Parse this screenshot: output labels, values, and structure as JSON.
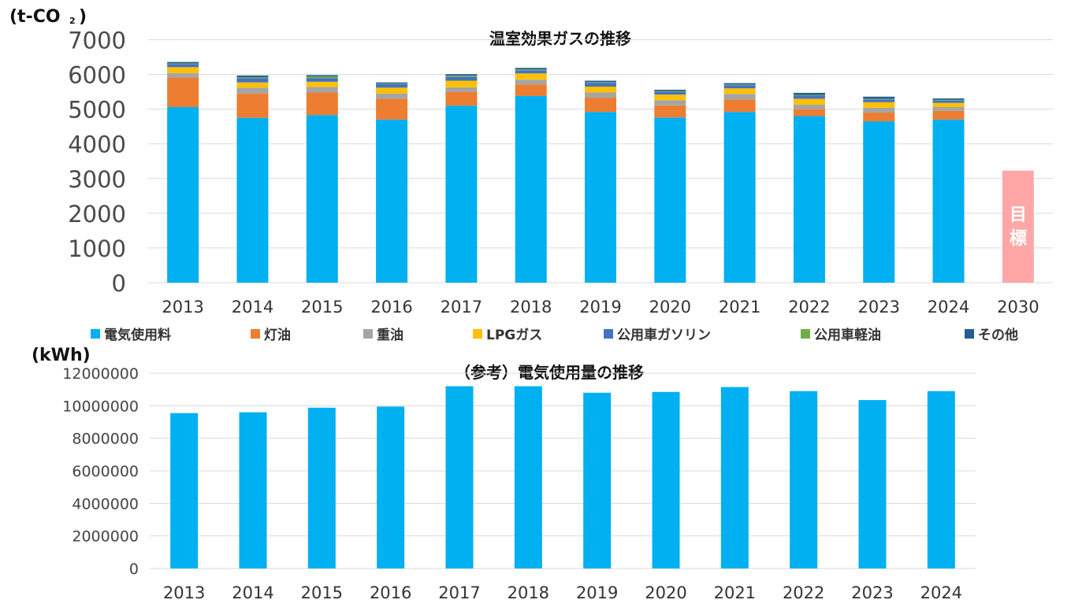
{
  "chart_data": [
    {
      "type": "bar",
      "stacked": true,
      "title": "温室効果ガスの推移",
      "unit_label": "(t-CO",
      "unit_subscript": "2",
      "unit_close": ")",
      "ylim": [
        0,
        7000
      ],
      "y_ticks": [
        0,
        1000,
        2000,
        3000,
        4000,
        5000,
        6000,
        7000
      ],
      "grid": true,
      "legend_position": "bottom",
      "categories": [
        "2013",
        "2014",
        "2015",
        "2016",
        "2017",
        "2018",
        "2019",
        "2020",
        "2021",
        "2022",
        "2023",
        "2024",
        "2030"
      ],
      "series": [
        {
          "name": "電気使用料",
          "color": "#00B0F0",
          "values": [
            5060,
            4750,
            4830,
            4700,
            5100,
            5380,
            4920,
            4760,
            4920,
            4800,
            4650,
            4700,
            0
          ]
        },
        {
          "name": "灯油",
          "color": "#ED7D31",
          "values": [
            850,
            700,
            650,
            600,
            400,
            330,
            410,
            350,
            360,
            200,
            250,
            250,
            0
          ]
        },
        {
          "name": "重油",
          "color": "#A5A5A5",
          "values": [
            130,
            170,
            160,
            150,
            130,
            140,
            150,
            150,
            160,
            130,
            140,
            110,
            0
          ]
        },
        {
          "name": "LPGガス",
          "color": "#FFC000",
          "values": [
            170,
            150,
            150,
            170,
            190,
            180,
            170,
            160,
            160,
            170,
            160,
            120,
            0
          ]
        },
        {
          "name": "公用車ガソリン",
          "color": "#4472C4",
          "values": [
            90,
            120,
            100,
            100,
            110,
            90,
            110,
            80,
            90,
            90,
            80,
            70,
            0
          ]
        },
        {
          "name": "公用車軽油",
          "color": "#70AD47",
          "values": [
            20,
            30,
            50,
            20,
            40,
            30,
            20,
            20,
            20,
            20,
            20,
            20,
            0
          ]
        },
        {
          "name": "その他",
          "color": "#255E91",
          "values": [
            40,
            50,
            40,
            30,
            40,
            40,
            40,
            40,
            40,
            60,
            60,
            40,
            0
          ]
        }
      ],
      "target": {
        "category": "2030",
        "value": 3230,
        "label_line1": "目",
        "label_line2": "標",
        "color": "#FFA7A7"
      }
    },
    {
      "type": "bar",
      "title": "（参考）電気使用量の推移",
      "unit_label": "(kWh)",
      "ylim": [
        0,
        12000000
      ],
      "y_ticks": [
        0,
        2000000,
        4000000,
        6000000,
        8000000,
        10000000,
        12000000
      ],
      "grid": true,
      "color": "#00B0F0",
      "categories": [
        "2013",
        "2014",
        "2015",
        "2016",
        "2017",
        "2018",
        "2019",
        "2020",
        "2021",
        "2022",
        "2023",
        "2024"
      ],
      "values": [
        9550000,
        9600000,
        9880000,
        9950000,
        11200000,
        11200000,
        10800000,
        10850000,
        11150000,
        10900000,
        10350000,
        10900000
      ]
    }
  ]
}
